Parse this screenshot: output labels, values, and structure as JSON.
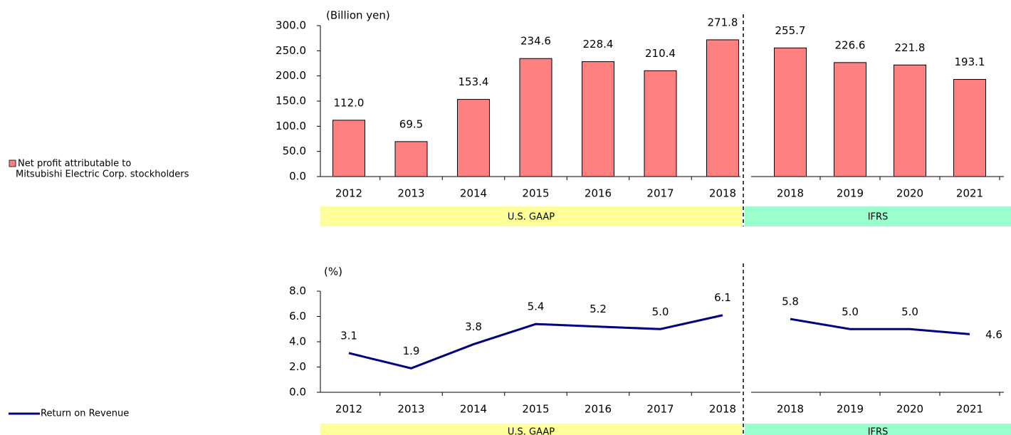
{
  "chart_data": [
    {
      "type": "bar",
      "unit_label": "(Billion yen)",
      "name": [
        "Net profit attributable to",
        "Mitsubishi Electric Corp. stockholders"
      ],
      "color": "#ff8080",
      "ylim": [
        0,
        300
      ],
      "yticks": [
        {
          "value": 0,
          "label": "0.0"
        },
        {
          "value": 50,
          "label": "50.0"
        },
        {
          "value": 100,
          "label": "100.0"
        },
        {
          "value": 150,
          "label": "150.0"
        },
        {
          "value": 200,
          "label": "200.0"
        },
        {
          "value": 250,
          "label": "250.0"
        },
        {
          "value": 300,
          "label": "300.0"
        }
      ],
      "groups": [
        {
          "label": "U.S. GAAP",
          "color": "#ffff99",
          "categories": [
            "2012",
            "2013",
            "2014",
            "2015",
            "2016",
            "2017",
            "2018"
          ],
          "values": [
            112.0,
            69.5,
            153.4,
            234.6,
            228.4,
            210.4,
            271.8
          ],
          "value_labels": [
            "112.0",
            "69.5",
            "153.4",
            "234.6",
            "228.4",
            "210.4",
            "271.8"
          ]
        },
        {
          "label": "IFRS",
          "color": "#99ffcc",
          "categories": [
            "2018",
            "2019",
            "2020",
            "2021"
          ],
          "values": [
            255.7,
            226.6,
            221.8,
            193.1
          ],
          "value_labels": [
            "255.7",
            "226.6",
            "221.8",
            "193.1"
          ]
        }
      ]
    },
    {
      "type": "line",
      "unit_label": "(%)",
      "name": "Return on Revenue",
      "color": "#000080",
      "ylim": [
        0,
        8
      ],
      "yticks": [
        {
          "value": 0,
          "label": "0.0"
        },
        {
          "value": 2,
          "label": "2.0"
        },
        {
          "value": 4,
          "label": "4.0"
        },
        {
          "value": 6,
          "label": "6.0"
        },
        {
          "value": 8,
          "label": "8.0"
        }
      ],
      "groups": [
        {
          "label": "U.S. GAAP",
          "color": "#ffff99",
          "categories": [
            "2012",
            "2013",
            "2014",
            "2015",
            "2016",
            "2017",
            "2018"
          ],
          "values": [
            3.1,
            1.9,
            3.8,
            5.4,
            5.2,
            5.0,
            6.1
          ],
          "value_labels": [
            "3.1",
            "1.9",
            "3.8",
            "5.4",
            "5.2",
            "5.0",
            "6.1"
          ]
        },
        {
          "label": "IFRS",
          "color": "#99ffcc",
          "categories": [
            "2018",
            "2019",
            "2020",
            "2021"
          ],
          "values": [
            5.8,
            5.0,
            5.0,
            4.6
          ],
          "value_labels": [
            "5.8",
            "5.0",
            "5.0",
            "4.6"
          ]
        }
      ]
    }
  ]
}
